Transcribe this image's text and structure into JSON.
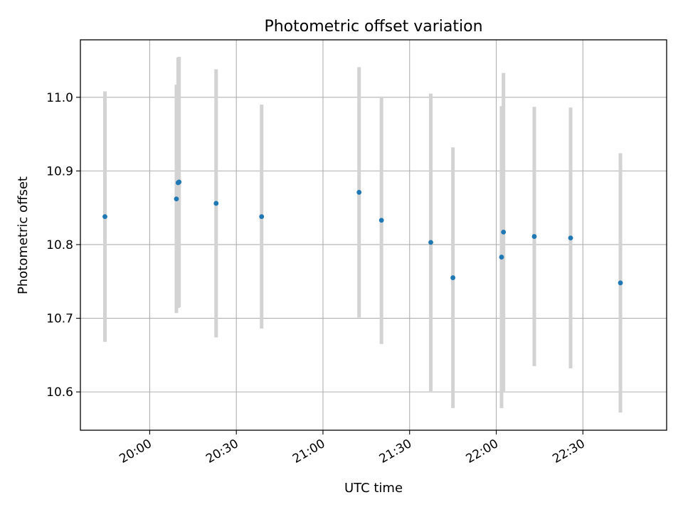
{
  "chart_data": {
    "type": "scatter",
    "title": "Photometric offset variation",
    "xlabel": "UTC time",
    "ylabel": "Photometric offset",
    "xlim": [
      "19:36",
      "22:59"
    ],
    "ylim": [
      10.548,
      11.078
    ],
    "grid": true,
    "x_ticks": [
      "20:00",
      "20:30",
      "21:00",
      "21:30",
      "22:00",
      "22:30"
    ],
    "y_ticks": [
      "10.6",
      "10.7",
      "10.8",
      "10.9",
      "11.0"
    ],
    "colors": {
      "point": "#1f77b4",
      "errorbar": "#d3d3d3",
      "grid": "#b0b0b0"
    },
    "points": [
      {
        "x": "19:44:30",
        "y": 10.838,
        "yerr": 0.17
      },
      {
        "x": "20:09:15",
        "y": 10.862,
        "yerr": 0.155
      },
      {
        "x": "20:09:50",
        "y": 10.884,
        "yerr": 0.17
      },
      {
        "x": "20:10:10",
        "y": 10.885,
        "yerr": 0.17
      },
      {
        "x": "20:23:00",
        "y": 10.856,
        "yerr": 0.182
      },
      {
        "x": "20:38:45",
        "y": 10.838,
        "yerr": 0.152
      },
      {
        "x": "21:12:30",
        "y": 10.871,
        "yerr": 0.17
      },
      {
        "x": "21:20:15",
        "y": 10.833,
        "yerr": 0.168
      },
      {
        "x": "21:37:20",
        "y": 10.803,
        "yerr": 0.202
      },
      {
        "x": "21:45:00",
        "y": 10.755,
        "yerr": 0.177
      },
      {
        "x": "22:01:50",
        "y": 10.783,
        "yerr": 0.205
      },
      {
        "x": "22:02:30",
        "y": 10.817,
        "yerr": 0.216
      },
      {
        "x": "22:13:10",
        "y": 10.811,
        "yerr": 0.176
      },
      {
        "x": "22:25:45",
        "y": 10.809,
        "yerr": 0.177
      },
      {
        "x": "22:43:00",
        "y": 10.748,
        "yerr": 0.176
      }
    ]
  }
}
